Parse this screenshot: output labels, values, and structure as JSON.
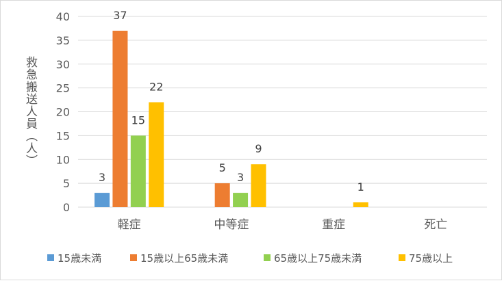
{
  "chart_data": {
    "type": "bar",
    "title": "",
    "xlabel": "",
    "ylabel": "救急搬送人員（人）",
    "ylim": [
      0,
      40
    ],
    "yticks": [
      0,
      5,
      10,
      15,
      20,
      25,
      30,
      35,
      40
    ],
    "grid": true,
    "legend_position": "bottom",
    "categories": [
      "軽症",
      "中等症",
      "重症",
      "死亡"
    ],
    "series": [
      {
        "name": "15歳未満",
        "color": "#5b9bd5",
        "values": [
          3,
          0,
          0,
          0
        ],
        "labels": [
          "3",
          "",
          "",
          ""
        ]
      },
      {
        "name": "15歳以上65歳未満",
        "color": "#ed7d31",
        "values": [
          37,
          5,
          0,
          0
        ],
        "labels": [
          "37",
          "5",
          "",
          ""
        ]
      },
      {
        "name": "65歳以上75歳未満",
        "color": "#92d050",
        "values": [
          15,
          3,
          0,
          0
        ],
        "labels": [
          "15",
          "3",
          "",
          ""
        ]
      },
      {
        "name": "75歳以上",
        "color": "#ffc000",
        "values": [
          22,
          9,
          1,
          0
        ],
        "labels": [
          "22",
          "9",
          "1",
          ""
        ]
      }
    ]
  }
}
